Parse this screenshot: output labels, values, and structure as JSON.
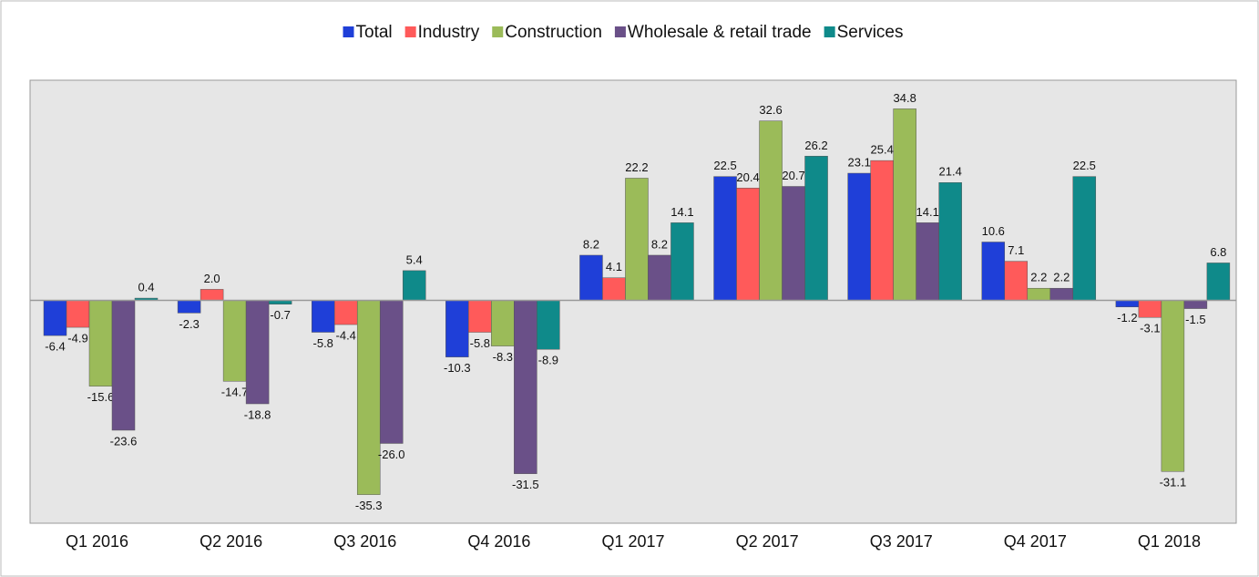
{
  "chart_data": {
    "type": "bar",
    "categories": [
      "Q1 2016",
      "Q2 2016",
      "Q3 2016",
      "Q4 2016",
      "Q1 2017",
      "Q2 2017",
      "Q3 2017",
      "Q4 2017",
      "Q1 2018"
    ],
    "series": [
      {
        "name": "Total",
        "color": "#1f3fd8",
        "values": [
          -6.4,
          -2.3,
          -5.8,
          -10.3,
          8.2,
          22.5,
          23.1,
          10.6,
          -1.2
        ],
        "value_labels": [
          "-6.4",
          "-2.3",
          "-5.8",
          "-10.3",
          "8.2",
          "22.5",
          "23.1",
          "10.6",
          "-1.2"
        ]
      },
      {
        "name": "Industry",
        "color": "#ff5a5a",
        "values": [
          -4.9,
          2.0,
          -4.4,
          -5.8,
          4.1,
          20.4,
          25.4,
          7.1,
          -3.1
        ],
        "value_labels": [
          "-4.9",
          "2.0",
          "-4.4",
          "-5.8",
          "4.1",
          "20.4",
          "25.4",
          "7.1",
          "-3.1"
        ]
      },
      {
        "name": "Construction",
        "color": "#9bbb59",
        "values": [
          -15.6,
          -14.7,
          -35.3,
          -8.3,
          22.2,
          32.6,
          34.8,
          2.2,
          -31.1
        ],
        "value_labels": [
          "-15.6",
          "-14.7",
          "-35.3",
          "-8.3",
          "22.2",
          "32.6",
          "34.8",
          "2.2",
          "-31.1"
        ]
      },
      {
        "name": "Wholesale & retail trade",
        "color": "#6a5088",
        "values": [
          -23.6,
          -18.8,
          -26.0,
          -31.5,
          8.2,
          20.7,
          14.1,
          2.2,
          -1.5
        ],
        "value_labels": [
          "-23.6",
          "-18.8",
          "-26.0",
          "-31.5",
          "8.2",
          "20.7",
          "14.1",
          "2.2",
          "-1.5"
        ]
      },
      {
        "name": "Services",
        "color": "#0f8a8a",
        "values": [
          0.4,
          -0.7,
          5.4,
          -8.9,
          14.1,
          26.2,
          21.4,
          22.5,
          6.8
        ],
        "value_labels": [
          "0.4",
          "-0.7",
          "5.4",
          "-8.9",
          "14.1",
          "26.2",
          "21.4",
          "22.5",
          "6.8"
        ]
      }
    ],
    "ylim": [
      -40.5,
      40
    ],
    "legend": "top"
  }
}
